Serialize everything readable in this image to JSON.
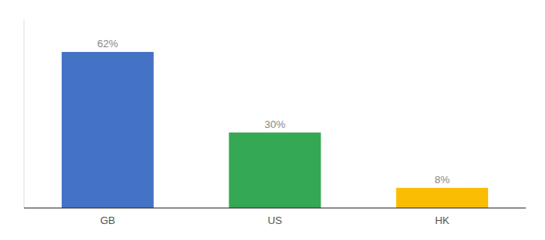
{
  "chart_data": {
    "type": "bar",
    "categories": [
      "GB",
      "US",
      "HK"
    ],
    "values": [
      62,
      30,
      8
    ],
    "value_labels": [
      "62%",
      "30%",
      "8%"
    ],
    "colors": [
      "#4472C4",
      "#34A853",
      "#FBBC04"
    ],
    "ylim": [
      0,
      75
    ],
    "tick_labels": "x",
    "data_labels": true
  }
}
